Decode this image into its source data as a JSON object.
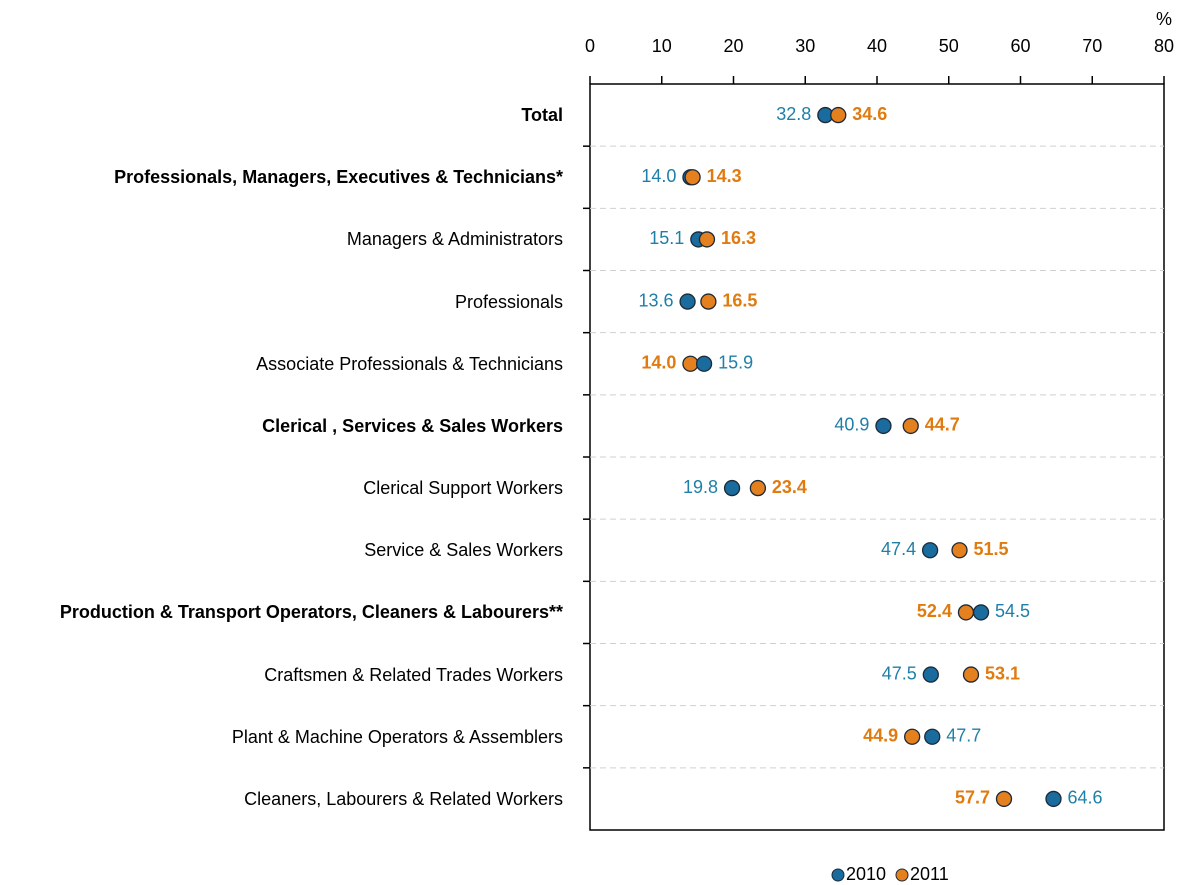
{
  "chart_data": {
    "type": "dot",
    "categories": [
      "Total",
      "Professionals, Managers, Executives & Technicians*",
      "Managers & Administrators",
      "Professionals",
      "Associate Professionals & Technicians",
      "Clerical , Services & Sales Workers",
      "Clerical Support Workers",
      "Service & Sales Workers",
      "Production & Transport Operators, Cleaners & Labourers**",
      "Craftsmen & Related Trades Workers",
      "Plant & Machine Operators & Assemblers",
      "Cleaners, Labourers & Related Workers"
    ],
    "bold_categories": [
      true,
      true,
      false,
      false,
      false,
      true,
      false,
      false,
      true,
      false,
      false,
      false
    ],
    "series": [
      {
        "name": "2010",
        "color": "#1a6b9e",
        "label_color": "#1f7fa8",
        "bold_labels": false,
        "values": [
          32.8,
          14.0,
          15.1,
          13.6,
          15.9,
          40.9,
          19.8,
          47.4,
          54.5,
          47.5,
          47.7,
          64.6
        ],
        "value_labels": [
          "32.8",
          "14.0",
          "15.1",
          "13.6",
          "15.9",
          "40.9",
          "19.8",
          "47.4",
          "54.5",
          "47.5",
          "47.7",
          "64.6"
        ]
      },
      {
        "name": "2011",
        "color": "#e5801f",
        "label_color": "#e07b10",
        "bold_labels": true,
        "values": [
          34.6,
          14.3,
          16.3,
          16.5,
          14.0,
          44.7,
          23.4,
          51.5,
          52.4,
          53.1,
          44.9,
          57.7
        ],
        "value_labels": [
          "34.6",
          "14.3",
          "16.3",
          "16.5",
          "14.0",
          "44.7",
          "23.4",
          "51.5",
          "52.4",
          "53.1",
          "44.9",
          "57.7"
        ]
      }
    ],
    "x_label": "%",
    "xlim": [
      0,
      80
    ],
    "xticks": [
      0,
      10,
      20,
      30,
      40,
      50,
      60,
      70,
      80
    ],
    "legend": "bottom"
  }
}
